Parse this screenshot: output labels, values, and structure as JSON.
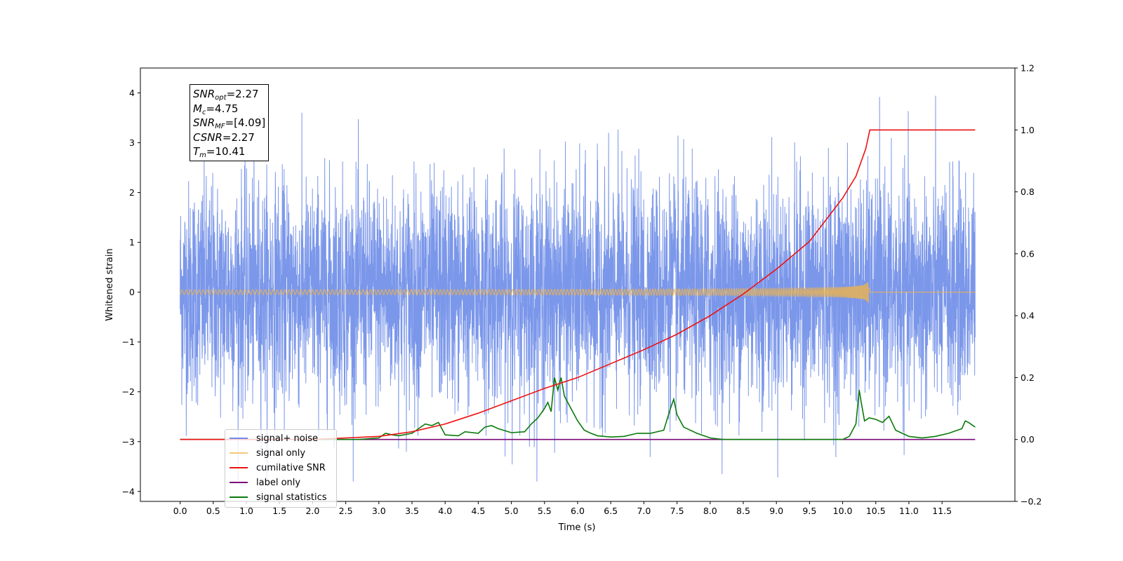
{
  "chart_data": {
    "type": "line",
    "xlabel": "Time (s)",
    "ylabel": "Whitened strain",
    "xlim": [
      -0.6,
      12.6
    ],
    "ylim": [
      -4.2,
      4.5
    ],
    "y2lim": [
      -0.2,
      1.2
    ],
    "x_ticks": [
      "0.0",
      "0.5",
      "1.0",
      "1.5",
      "2.0",
      "2.5",
      "3.0",
      "3.5",
      "4.0",
      "4.5",
      "5.0",
      "5.5",
      "6.0",
      "6.5",
      "7.0",
      "7.5",
      "8.0",
      "8.5",
      "9.0",
      "9.5",
      "10.0",
      "10.5",
      "11.0",
      "11.5"
    ],
    "y_ticks": [
      "−4",
      "−3",
      "−2",
      "−1",
      "0",
      "1",
      "2",
      "3",
      "4"
    ],
    "y2_ticks": [
      "−0.2",
      "0.0",
      "0.2",
      "0.4",
      "0.6",
      "0.8",
      "1.0",
      "1.2"
    ],
    "annotation": {
      "snr_opt": "2.27",
      "mc": "4.75",
      "snr_mf": "[4.09]",
      "csnr": "2.27",
      "tm": "10.41"
    },
    "legend_placement": "lower-left",
    "series": [
      {
        "name": "signal+ noise",
        "color": "#6d8ce8",
        "axis": "left",
        "kind": "noise",
        "x_range": [
          0.0,
          12.0
        ],
        "amplitude_std": 1.1,
        "y_min": -3.8,
        "y_max": 4.1
      },
      {
        "name": "signal only",
        "color": "#f5b642",
        "axis": "left",
        "kind": "chirp",
        "merger_time": 10.41,
        "peak_amplitude": 0.25
      },
      {
        "name": "cumilative SNR",
        "color": "#ee1111",
        "axis": "right",
        "x": [
          0.0,
          2.0,
          3.0,
          3.5,
          4.0,
          4.5,
          5.0,
          5.5,
          6.0,
          6.5,
          7.0,
          7.5,
          8.0,
          8.5,
          9.0,
          9.5,
          10.0,
          10.2,
          10.35,
          10.41,
          11.0,
          11.5,
          11.8,
          12.0
        ],
        "y": [
          0.0,
          0.0,
          0.01,
          0.025,
          0.05,
          0.085,
          0.125,
          0.165,
          0.2,
          0.245,
          0.29,
          0.34,
          0.4,
          0.47,
          0.55,
          0.64,
          0.78,
          0.85,
          0.94,
          1.0,
          1.0,
          1.0,
          1.0,
          1.0
        ]
      },
      {
        "name": "label only",
        "color": "#7a0a7a",
        "axis": "right",
        "x": [
          0.0,
          12.0
        ],
        "y": [
          0.0,
          0.0
        ]
      },
      {
        "name": "signal statistics",
        "color": "#0a7a0a",
        "axis": "right",
        "x": [
          0.0,
          2.7,
          3.0,
          3.1,
          3.2,
          3.3,
          3.5,
          3.6,
          3.7,
          3.8,
          3.9,
          4.0,
          4.2,
          4.3,
          4.5,
          4.6,
          4.7,
          4.8,
          5.0,
          5.2,
          5.3,
          5.4,
          5.5,
          5.55,
          5.6,
          5.65,
          5.7,
          5.75,
          5.8,
          5.9,
          6.0,
          6.1,
          6.2,
          6.3,
          6.5,
          6.7,
          6.9,
          7.1,
          7.3,
          7.4,
          7.45,
          7.5,
          7.6,
          7.8,
          8.0,
          8.2,
          9.5,
          10.0,
          10.1,
          10.2,
          10.25,
          10.28,
          10.33,
          10.4,
          10.5,
          10.6,
          10.7,
          10.8,
          11.0,
          11.2,
          11.4,
          11.6,
          11.8,
          11.85,
          11.9,
          12.0
        ],
        "y": [
          0.0,
          0.0,
          0.005,
          0.02,
          0.015,
          0.012,
          0.02,
          0.035,
          0.05,
          0.045,
          0.055,
          0.015,
          0.012,
          0.025,
          0.02,
          0.04,
          0.045,
          0.035,
          0.022,
          0.025,
          0.05,
          0.07,
          0.1,
          0.12,
          0.09,
          0.2,
          0.16,
          0.2,
          0.14,
          0.1,
          0.06,
          0.03,
          0.02,
          0.012,
          0.008,
          0.01,
          0.02,
          0.02,
          0.03,
          0.1,
          0.13,
          0.08,
          0.04,
          0.02,
          0.005,
          0.0,
          0.0,
          0.0,
          0.01,
          0.05,
          0.16,
          0.12,
          0.06,
          0.07,
          0.065,
          0.055,
          0.075,
          0.03,
          0.01,
          0.005,
          0.01,
          0.02,
          0.035,
          0.06,
          0.055,
          0.04
        ]
      }
    ]
  }
}
